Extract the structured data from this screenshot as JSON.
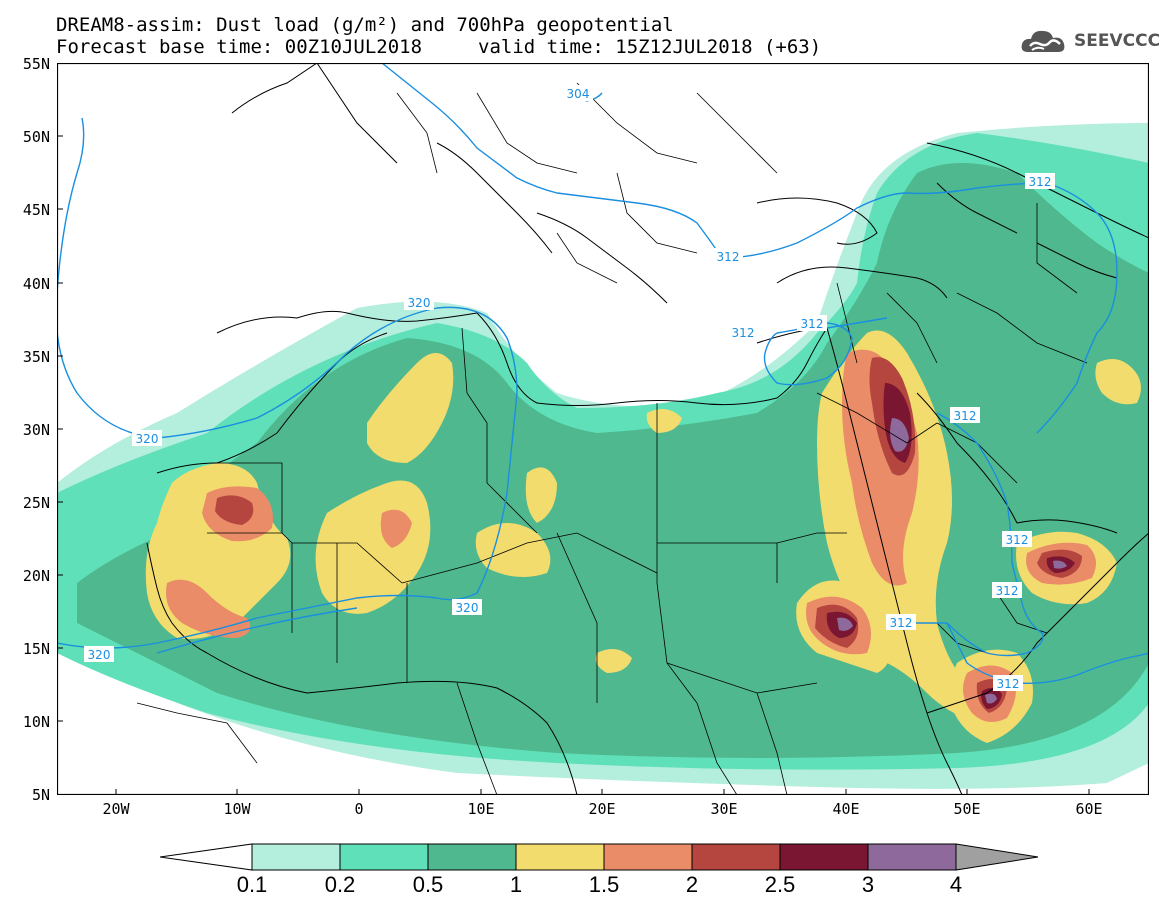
{
  "title": {
    "line1": "DREAM8-assim: Dust load (g/m²) and 700hPa geopotential",
    "line2a": "Forecast base time: 00Z10JUL2018",
    "line2b": "valid time: 15Z12JUL2018 (+63)"
  },
  "logo": {
    "text": "SEEVCCC",
    "icon": "cloud-icon"
  },
  "axes": {
    "lat_labels": [
      "55N",
      "50N",
      "45N",
      "40N",
      "35N",
      "30N",
      "25N",
      "20N",
      "15N",
      "10N",
      "5N"
    ],
    "lon_labels": [
      "20W",
      "10W",
      "0",
      "10E",
      "20E",
      "30E",
      "40E",
      "50E",
      "60E"
    ]
  },
  "contours": {
    "labels": [
      "304",
      "312",
      "312",
      "312",
      "312",
      "312",
      "312",
      "312",
      "312",
      "320",
      "320",
      "320",
      "320"
    ]
  },
  "colorbar": {
    "ticks": [
      "0.1",
      "0.2",
      "0.5",
      "1",
      "1.5",
      "2",
      "2.5",
      "3",
      "4"
    ],
    "colors": [
      "#b4eedd",
      "#5fe0b8",
      "#4fb88f",
      "#f3dc6e",
      "#ea8c68",
      "#b5463f",
      "#7a1632",
      "#8e6a9c",
      "#a0a0a0"
    ]
  },
  "palette": {
    "level1": "#b4eedd",
    "level2": "#5fe0b8",
    "level3": "#4fb88f",
    "level4": "#f3dc6e",
    "level5": "#ea8c68",
    "level6": "#b5463f",
    "level7": "#7a1632",
    "level8": "#8e6a9c",
    "contour": "#1a8fe0"
  }
}
